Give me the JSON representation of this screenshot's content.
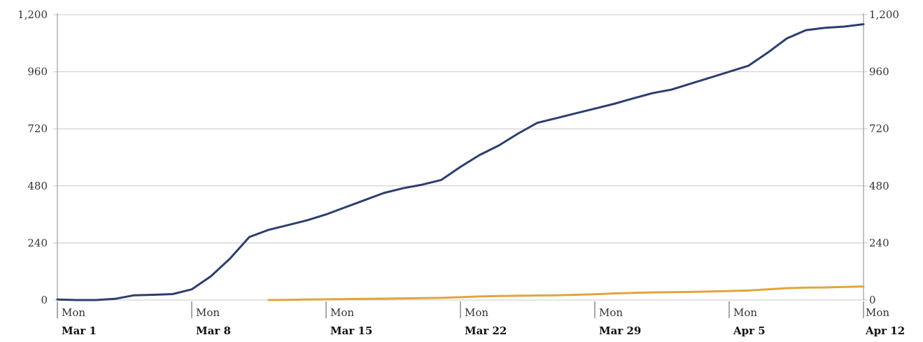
{
  "chart_data": {
    "type": "line",
    "title": "",
    "xlabel": "",
    "ylabel": "",
    "ylim": [
      0,
      1200
    ],
    "y_ticks": [
      "0",
      "240",
      "480",
      "720",
      "960",
      "1,200"
    ],
    "y_tick_values": [
      0,
      240,
      480,
      720,
      960,
      1200
    ],
    "right_axis": true,
    "grid": "horizontal",
    "x_ticks": [
      {
        "top": "Mon",
        "bottom": "Mar 1"
      },
      {
        "top": "Mon",
        "bottom": "Mar 8"
      },
      {
        "top": "Mon",
        "bottom": "Mar 15"
      },
      {
        "top": "Mon",
        "bottom": "Mar 22"
      },
      {
        "top": "Mon",
        "bottom": "Mar 29"
      },
      {
        "top": "Mon",
        "bottom": "Apr 5"
      },
      {
        "top": "Mon",
        "bottom": "Apr 12"
      }
    ],
    "x": [
      "Mar 1",
      "Mar 2",
      "Mar 3",
      "Mar 4",
      "Mar 5",
      "Mar 6",
      "Mar 7",
      "Mar 8",
      "Mar 9",
      "Mar 10",
      "Mar 11",
      "Mar 12",
      "Mar 13",
      "Mar 14",
      "Mar 15",
      "Mar 16",
      "Mar 17",
      "Mar 18",
      "Mar 19",
      "Mar 20",
      "Mar 21",
      "Mar 22",
      "Mar 23",
      "Mar 24",
      "Mar 25",
      "Mar 26",
      "Mar 27",
      "Mar 28",
      "Mar 29",
      "Mar 30",
      "Mar 31",
      "Apr 1",
      "Apr 2",
      "Apr 3",
      "Apr 4",
      "Apr 5",
      "Apr 6",
      "Apr 7",
      "Apr 8",
      "Apr 9",
      "Apr 10",
      "Apr 11",
      "Apr 12"
    ],
    "series": [
      {
        "color": "#2e3e6e",
        "values": [
          2,
          0,
          0,
          5,
          20,
          22,
          25,
          45,
          100,
          175,
          265,
          295,
          315,
          335,
          360,
          390,
          420,
          450,
          470,
          485,
          505,
          560,
          610,
          650,
          700,
          745,
          765,
          785,
          805,
          825,
          848,
          870,
          885,
          910,
          935,
          960,
          985,
          1040,
          1100,
          1135,
          1145,
          1150,
          1160
        ]
      },
      {
        "color": "#e0a63c",
        "values": [
          null,
          null,
          null,
          null,
          null,
          null,
          null,
          null,
          null,
          null,
          null,
          0,
          1,
          2,
          3,
          4,
          5,
          6,
          7,
          8,
          9,
          12,
          15,
          17,
          18,
          19,
          20,
          22,
          24,
          28,
          30,
          32,
          33,
          34,
          36,
          38,
          40,
          45,
          50,
          52,
          53,
          55,
          57
        ]
      }
    ]
  }
}
